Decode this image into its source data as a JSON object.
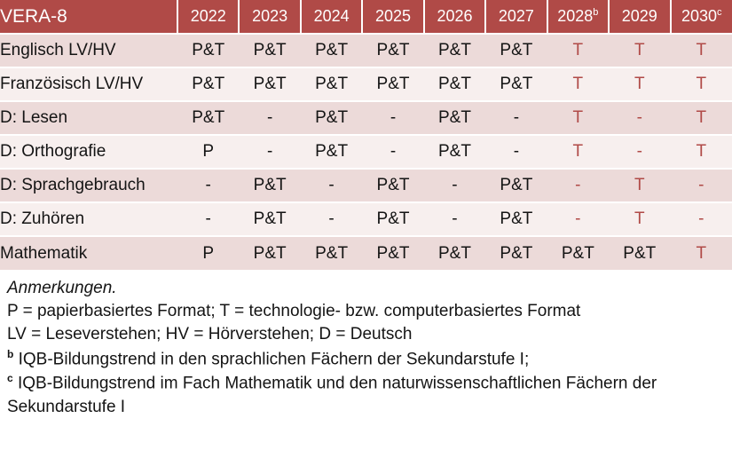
{
  "colors": {
    "header_bg": "#b04a47",
    "band_dark": "#ecdad9",
    "band_light": "#f7efee",
    "accent_text": "#b04a47",
    "body_text": "#141414"
  },
  "header": {
    "title": "VERA-8",
    "years": [
      {
        "label": "2022",
        "sup": ""
      },
      {
        "label": "2023",
        "sup": ""
      },
      {
        "label": "2024",
        "sup": ""
      },
      {
        "label": "2025",
        "sup": ""
      },
      {
        "label": "2026",
        "sup": ""
      },
      {
        "label": "2027",
        "sup": ""
      },
      {
        "label": "2028",
        "sup": "b"
      },
      {
        "label": "2029",
        "sup": ""
      },
      {
        "label": "2030",
        "sup": "c"
      }
    ]
  },
  "rows": [
    {
      "label": "Englisch LV/HV",
      "cells": [
        "P&T",
        "P&T",
        "P&T",
        "P&T",
        "P&T",
        "P&T",
        "T",
        "T",
        "T"
      ],
      "red": [
        false,
        false,
        false,
        false,
        false,
        false,
        true,
        true,
        true
      ]
    },
    {
      "label": "Französisch LV/HV",
      "cells": [
        "P&T",
        "P&T",
        "P&T",
        "P&T",
        "P&T",
        "P&T",
        "T",
        "T",
        "T"
      ],
      "red": [
        false,
        false,
        false,
        false,
        false,
        false,
        true,
        true,
        true
      ]
    },
    {
      "label": "D: Lesen",
      "cells": [
        "P&T",
        "-",
        "P&T",
        "-",
        "P&T",
        "-",
        "T",
        "-",
        "T"
      ],
      "red": [
        false,
        false,
        false,
        false,
        false,
        false,
        true,
        true,
        true
      ]
    },
    {
      "label": "D: Orthografie",
      "cells": [
        "P",
        "-",
        "P&T",
        "-",
        "P&T",
        "-",
        "T",
        "-",
        "T"
      ],
      "red": [
        false,
        false,
        false,
        false,
        false,
        false,
        true,
        true,
        true
      ]
    },
    {
      "label": "D: Sprachgebrauch",
      "cells": [
        "-",
        "P&T",
        "-",
        "P&T",
        "-",
        "P&T",
        "-",
        "T",
        "-"
      ],
      "red": [
        false,
        false,
        false,
        false,
        false,
        false,
        true,
        true,
        true
      ]
    },
    {
      "label": "D: Zuhören",
      "cells": [
        "-",
        "P&T",
        "-",
        "P&T",
        "-",
        "P&T",
        "-",
        "T",
        "-"
      ],
      "red": [
        false,
        false,
        false,
        false,
        false,
        false,
        true,
        true,
        true
      ]
    },
    {
      "label": "Mathematik",
      "cells": [
        "P",
        "P&T",
        "P&T",
        "P&T",
        "P&T",
        "P&T",
        "P&T",
        "P&T",
        "T"
      ],
      "red": [
        false,
        false,
        false,
        false,
        false,
        false,
        false,
        false,
        true
      ]
    }
  ],
  "notes": {
    "heading": "Anmerkungen.",
    "lines": [
      {
        "sup": "",
        "text": "P = papierbasiertes Format; T = technologie- bzw. computerbasiertes Format"
      },
      {
        "sup": "",
        "text": "LV = Leseverstehen; HV = Hörverstehen; D = Deutsch"
      },
      {
        "sup": "b",
        "text": "IQB-Bildungstrend in den sprachlichen Fächern der Sekundarstufe I;"
      },
      {
        "sup": "c",
        "text": "IQB-Bildungstrend im Fach Mathematik und den naturwissenschaftlichen Fächern der Sekundarstufe I"
      }
    ]
  }
}
